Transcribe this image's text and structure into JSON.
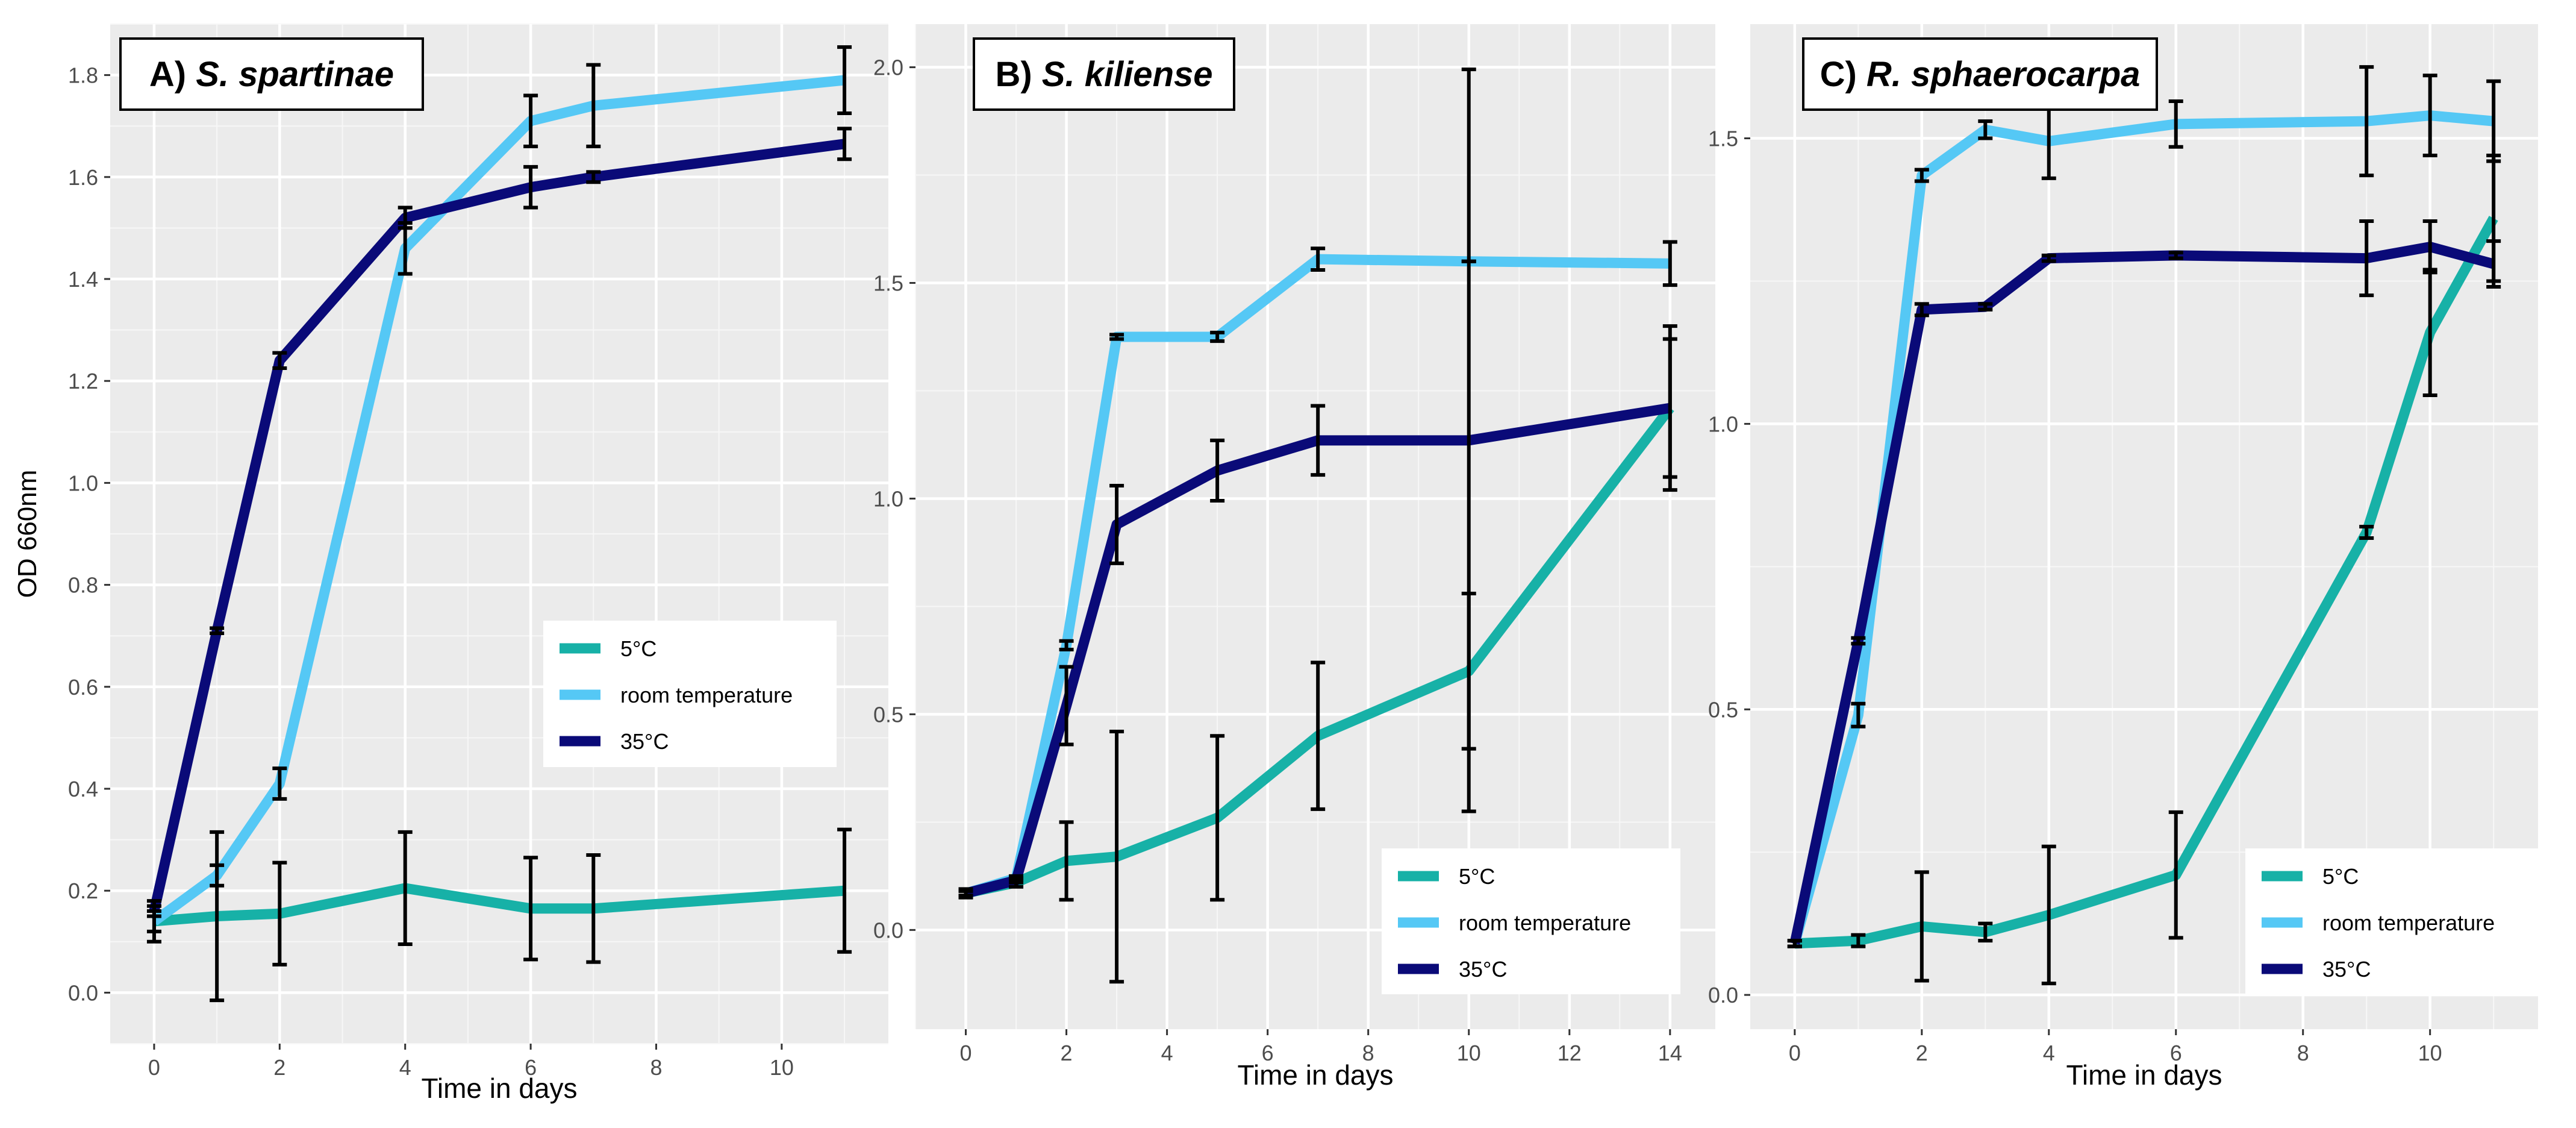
{
  "chart_data": [
    {
      "type": "line",
      "title": "A) S. spartinae",
      "title_parts": {
        "prefix": "A)",
        "italic": "S. spartinae"
      },
      "xlabel": "Time in days",
      "ylabel": "OD 660nm",
      "xlim": [
        -0.7,
        11.7
      ],
      "ylim": [
        -0.1,
        1.9
      ],
      "xticks": [
        0,
        2,
        4,
        6,
        8,
        10
      ],
      "yticks": [
        0.0,
        0.2,
        0.4,
        0.6,
        0.8,
        1.0,
        1.2,
        1.4,
        1.6,
        1.8
      ],
      "grid": true,
      "legend_position": "center-right",
      "series": [
        {
          "name": "5°C",
          "color": "#17b1a7",
          "x": [
            0,
            1,
            2,
            4,
            6,
            7,
            11
          ],
          "y": [
            0.14,
            0.15,
            0.155,
            0.205,
            0.165,
            0.165,
            0.2
          ],
          "err": [
            0.04,
            0.165,
            0.1,
            0.11,
            0.1,
            0.105,
            0.12
          ]
        },
        {
          "name": "room temperature",
          "color": "#55c8f5",
          "x": [
            0,
            1,
            2,
            4,
            6,
            7,
            11
          ],
          "y": [
            0.14,
            0.23,
            0.41,
            1.46,
            1.71,
            1.74,
            1.79
          ],
          "err": [
            0.02,
            0.02,
            0.03,
            0.05,
            0.05,
            0.08,
            0.065
          ]
        },
        {
          "name": "35°C",
          "color": "#0a0a78",
          "x": [
            0,
            1,
            2,
            4,
            6,
            7,
            11
          ],
          "y": [
            0.16,
            0.71,
            1.24,
            1.52,
            1.58,
            1.6,
            1.665
          ],
          "err": [
            0.01,
            0.005,
            0.015,
            0.02,
            0.04,
            0.01,
            0.03
          ]
        }
      ]
    },
    {
      "type": "line",
      "title": "B) S. kiliense",
      "title_parts": {
        "prefix": "B)",
        "italic": "S. kiliense"
      },
      "xlabel": "Time in days",
      "ylabel": "",
      "xlim": [
        -1.0,
        14.9
      ],
      "ylim": [
        -0.23,
        2.1
      ],
      "xticks": [
        0,
        2,
        4,
        6,
        8,
        10,
        12,
        14
      ],
      "yticks": [
        0.0,
        0.5,
        1.0,
        1.5,
        2.0
      ],
      "grid": true,
      "legend_position": "bottom-right",
      "series": [
        {
          "name": "5°C",
          "color": "#17b1a7",
          "x": [
            0,
            1,
            2,
            3,
            5,
            7,
            10,
            14
          ],
          "y": [
            0.085,
            0.11,
            0.16,
            0.17,
            0.26,
            0.45,
            0.6,
            1.21
          ],
          "err": [
            0.01,
            0.01,
            0.09,
            0.29,
            0.19,
            0.17,
            0.18,
            0.16
          ]
        },
        {
          "name": "room temperature",
          "color": "#55c8f5",
          "x": [
            0,
            1,
            2,
            3,
            5,
            7,
            10,
            14
          ],
          "y": [
            0.085,
            0.12,
            0.66,
            1.375,
            1.375,
            1.555,
            1.55,
            1.545
          ],
          "err": [
            0.005,
            0.005,
            0.01,
            0.005,
            0.01,
            0.025,
            0.0,
            0.05
          ]
        },
        {
          "name": "35°C",
          "color": "#0a0a78",
          "x": [
            0,
            1,
            2,
            3,
            5,
            7,
            10,
            14
          ],
          "y": [
            0.085,
            0.115,
            0.52,
            0.94,
            1.065,
            1.135,
            1.135,
            1.21
          ],
          "err": [
            0.005,
            0.005,
            0.09,
            0.09,
            0.07,
            0.08,
            0.86,
            0.19
          ]
        }
      ]
    },
    {
      "type": "line",
      "title": "C) R. sphaerocarpa",
      "title_parts": {
        "prefix": "C)",
        "italic": "R. sphaerocarpa"
      },
      "xlabel": "Time in days",
      "ylabel": "",
      "xlim": [
        -0.7,
        11.7
      ],
      "ylim": [
        -0.06,
        1.7
      ],
      "xticks": [
        0,
        2,
        4,
        6,
        8,
        10
      ],
      "yticks": [
        0.0,
        0.5,
        1.0,
        1.5
      ],
      "grid": true,
      "legend_position": "bottom-right",
      "series": [
        {
          "name": "5°C",
          "color": "#17b1a7",
          "x": [
            0,
            1,
            2,
            3,
            4,
            6,
            9,
            10,
            11
          ],
          "y": [
            0.09,
            0.095,
            0.12,
            0.11,
            0.14,
            0.21,
            0.81,
            1.16,
            1.36
          ],
          "err": [
            0.005,
            0.01,
            0.095,
            0.015,
            0.12,
            0.11,
            0.01,
            0.11,
            0.11
          ]
        },
        {
          "name": "room temperature",
          "color": "#55c8f5",
          "x": [
            0,
            1,
            2,
            3,
            4,
            6,
            9,
            10,
            11
          ],
          "y": [
            0.09,
            0.49,
            1.435,
            1.515,
            1.495,
            1.525,
            1.53,
            1.54,
            1.53
          ],
          "err": [
            0.005,
            0.02,
            0.01,
            0.015,
            0.065,
            0.04,
            0.095,
            0.07,
            0.07
          ]
        },
        {
          "name": "35°C",
          "color": "#0a0a78",
          "x": [
            0,
            1,
            2,
            3,
            4,
            6,
            9,
            10,
            11
          ],
          "y": [
            0.09,
            0.62,
            1.2,
            1.205,
            1.29,
            1.295,
            1.29,
            1.31,
            1.28
          ],
          "err": [
            0.005,
            0.005,
            0.01,
            0.005,
            0.005,
            0.005,
            0.065,
            0.045,
            0.04
          ]
        }
      ]
    }
  ]
}
